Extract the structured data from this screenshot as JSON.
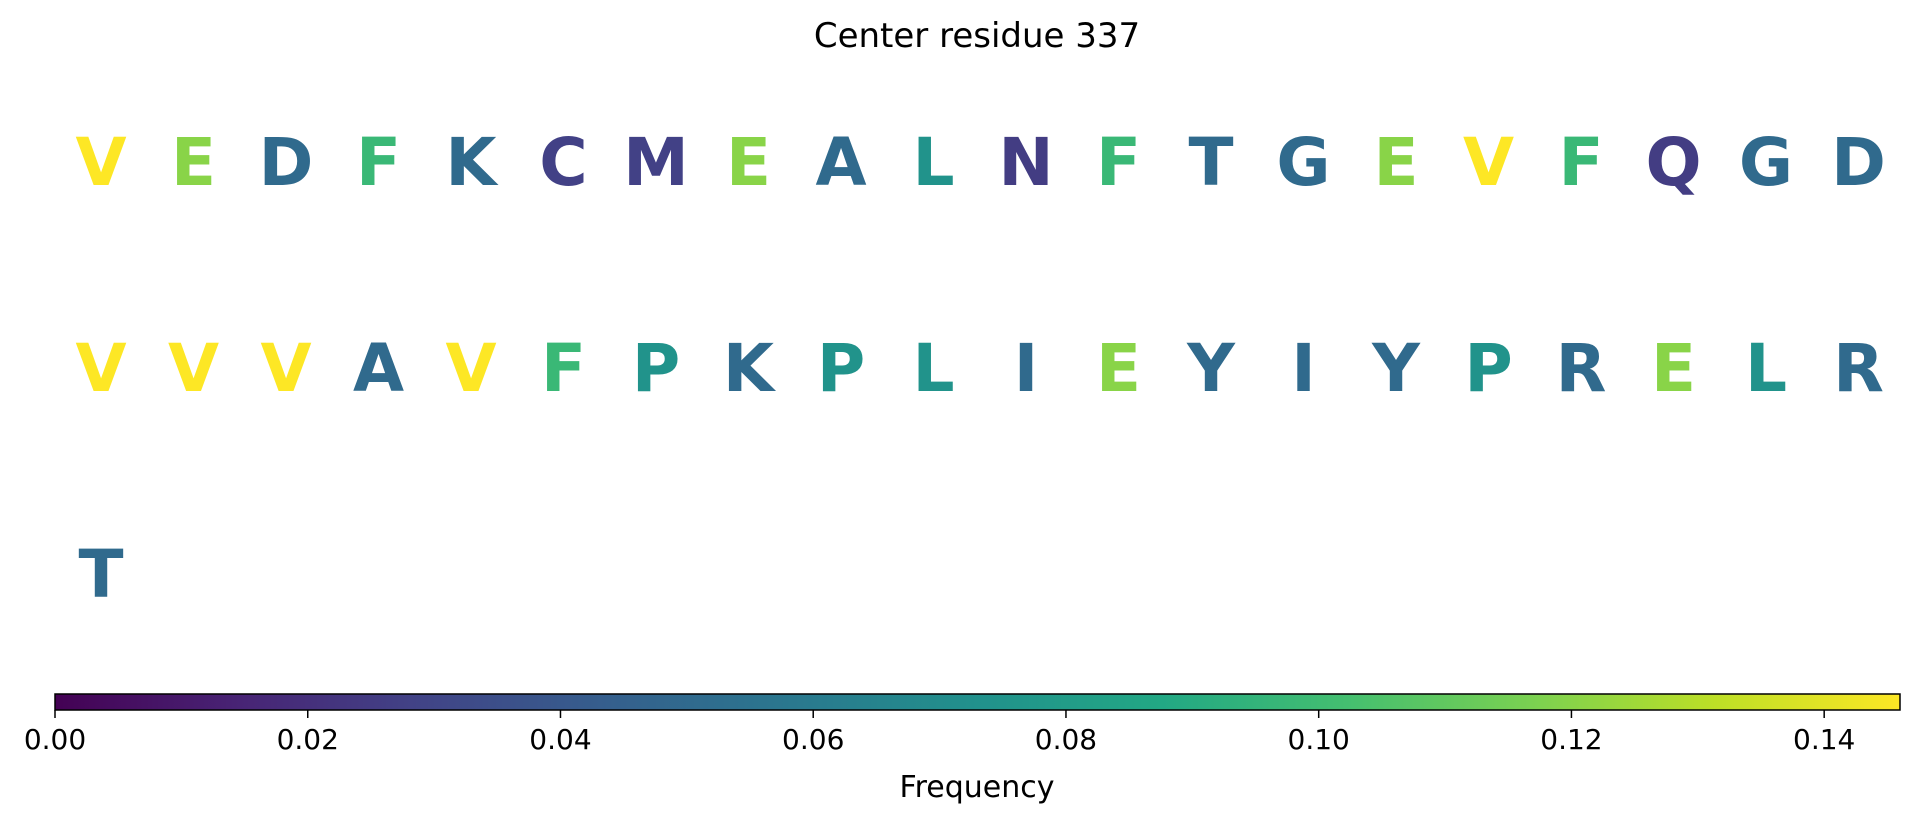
{
  "chart_data": {
    "type": "table",
    "title": "Center residue 337",
    "residues": [
      {
        "letter": "V",
        "frequency": 0.146
      },
      {
        "letter": "E",
        "frequency": 0.12
      },
      {
        "letter": "D",
        "frequency": 0.05
      },
      {
        "letter": "F",
        "frequency": 0.098
      },
      {
        "letter": "K",
        "frequency": 0.05
      },
      {
        "letter": "C",
        "frequency": 0.028
      },
      {
        "letter": "M",
        "frequency": 0.028
      },
      {
        "letter": "E",
        "frequency": 0.12
      },
      {
        "letter": "A",
        "frequency": 0.05
      },
      {
        "letter": "L",
        "frequency": 0.074
      },
      {
        "letter": "N",
        "frequency": 0.026
      },
      {
        "letter": "F",
        "frequency": 0.098
      },
      {
        "letter": "T",
        "frequency": 0.05
      },
      {
        "letter": "G",
        "frequency": 0.05
      },
      {
        "letter": "E",
        "frequency": 0.12
      },
      {
        "letter": "V",
        "frequency": 0.146
      },
      {
        "letter": "F",
        "frequency": 0.098
      },
      {
        "letter": "Q",
        "frequency": 0.026
      },
      {
        "letter": "G",
        "frequency": 0.05
      },
      {
        "letter": "D",
        "frequency": 0.05
      },
      {
        "letter": "V",
        "frequency": 0.146
      },
      {
        "letter": "V",
        "frequency": 0.146
      },
      {
        "letter": "V",
        "frequency": 0.146
      },
      {
        "letter": "A",
        "frequency": 0.05
      },
      {
        "letter": "V",
        "frequency": 0.146
      },
      {
        "letter": "F",
        "frequency": 0.098
      },
      {
        "letter": "P",
        "frequency": 0.074
      },
      {
        "letter": "K",
        "frequency": 0.05
      },
      {
        "letter": "P",
        "frequency": 0.074
      },
      {
        "letter": "L",
        "frequency": 0.074
      },
      {
        "letter": "I",
        "frequency": 0.05
      },
      {
        "letter": "E",
        "frequency": 0.12
      },
      {
        "letter": "Y",
        "frequency": 0.05
      },
      {
        "letter": "I",
        "frequency": 0.05
      },
      {
        "letter": "Y",
        "frequency": 0.05
      },
      {
        "letter": "P",
        "frequency": 0.074
      },
      {
        "letter": "R",
        "frequency": 0.05
      },
      {
        "letter": "E",
        "frequency": 0.12
      },
      {
        "letter": "L",
        "frequency": 0.074
      },
      {
        "letter": "R",
        "frequency": 0.05
      },
      {
        "letter": "T",
        "frequency": 0.05
      }
    ],
    "colorbar": {
      "label": "Frequency",
      "colormap": "viridis",
      "range": [
        0,
        0.146
      ],
      "ticks": [
        0.0,
        0.02,
        0.04,
        0.06,
        0.08,
        0.1,
        0.12,
        0.14
      ],
      "tick_labels": [
        "0.00",
        "0.02",
        "0.04",
        "0.06",
        "0.08",
        "0.10",
        "0.12",
        "0.14"
      ],
      "orientation": "horizontal"
    },
    "grid": false
  }
}
